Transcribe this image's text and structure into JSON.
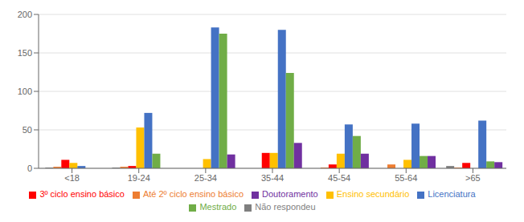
{
  "chart_data": {
    "type": "bar",
    "categories": [
      "<18",
      "19-24",
      "25-34",
      "35-44",
      "45-54",
      "55-64",
      ">65"
    ],
    "series": [
      {
        "name": "Não respondeu",
        "color": "#7f7f7f",
        "values": [
          1,
          1,
          0,
          0,
          0,
          0,
          3
        ]
      },
      {
        "name": "Até 2º ciclo ensino básico",
        "color": "#ed7d31",
        "values": [
          2,
          2,
          0,
          0,
          1,
          5,
          1
        ]
      },
      {
        "name": "3º ciclo ensino básico",
        "color": "#ff0000",
        "values": [
          11,
          3,
          0,
          20,
          5,
          0,
          7
        ]
      },
      {
        "name": "Ensino secundário",
        "color": "#ffc000",
        "values": [
          7,
          53,
          12,
          20,
          19,
          11,
          0
        ]
      },
      {
        "name": "Licenciatura",
        "color": "#4472c4",
        "values": [
          3,
          72,
          183,
          180,
          57,
          58,
          62
        ]
      },
      {
        "name": "Mestrado",
        "color": "#70ad47",
        "values": [
          0,
          19,
          175,
          124,
          42,
          16,
          9
        ]
      },
      {
        "name": "Doutoramento",
        "color": "#7030a0",
        "values": [
          0,
          0,
          18,
          33,
          19,
          16,
          8
        ]
      }
    ],
    "ylim": [
      0,
      200
    ],
    "yticks": [
      0,
      50,
      100,
      150,
      200
    ],
    "grid": true,
    "legend": "bottom"
  }
}
